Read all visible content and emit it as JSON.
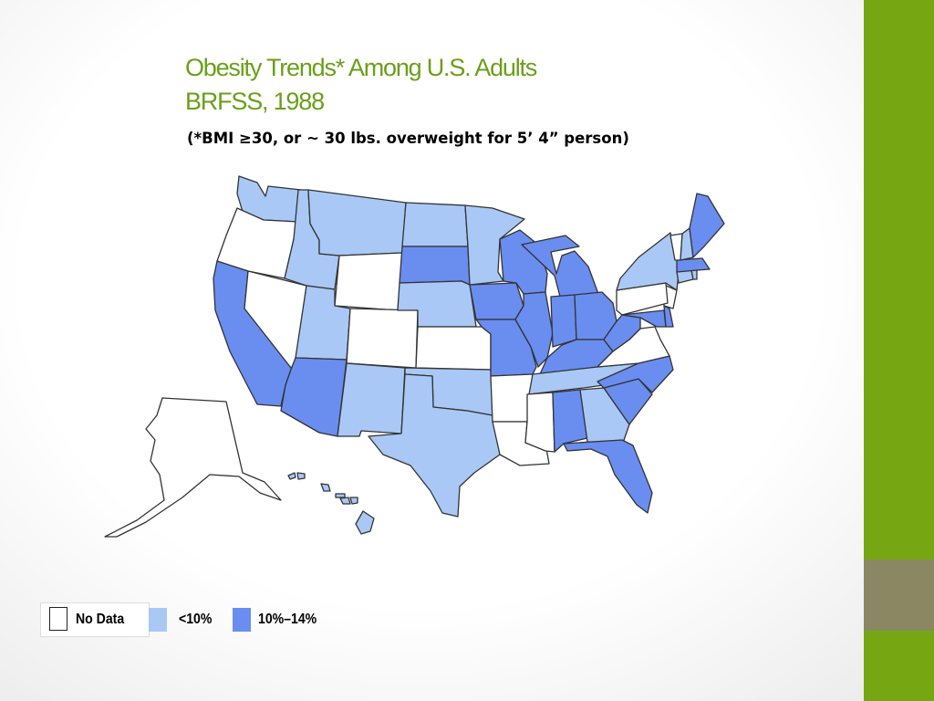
{
  "slide": {
    "title_line1": "Obesity Trends* Among U.S. Adults",
    "title_line2": "BRFSS, 1988",
    "subtitle": "(*BMI ≥30, or ~ 30 lbs. overweight for 5’ 4” person)"
  },
  "colors": {
    "no_data": "#ffffff",
    "under_10": "#a9c8f5",
    "10_14": "#6a8df0",
    "title": "#6a9f1a",
    "sidebar_green": "#76a713",
    "sidebar_gray": "#8c8763"
  },
  "legend": [
    {
      "label": "No Data",
      "color": "#ffffff"
    },
    {
      "label": "<10%",
      "color": "#a9c8f5"
    },
    {
      "label": "10%–14%",
      "color": "#6a8df0"
    }
  ],
  "states": {
    "WA": "<10%",
    "OR": "No Data",
    "CA": "10%–14%",
    "NV": "No Data",
    "ID": "<10%",
    "MT": "<10%",
    "WY": "No Data",
    "UT": "<10%",
    "AZ": "10%–14%",
    "CO": "No Data",
    "NM": "<10%",
    "ND": "<10%",
    "SD": "10%–14%",
    "NE": "<10%",
    "KS": "No Data",
    "OK": "<10%",
    "TX": "<10%",
    "MN": "<10%",
    "IA": "10%–14%",
    "MO": "10%–14%",
    "AR": "No Data",
    "LA": "No Data",
    "WI": "10%–14%",
    "IL": "10%–14%",
    "MI": "10%–14%",
    "IN": "10%–14%",
    "OH": "10%–14%",
    "KY": "10%–14%",
    "TN": "<10%",
    "MS": "No Data",
    "AL": "10%–14%",
    "GA": "<10%",
    "FL": "10%–14%",
    "SC": "10%–14%",
    "NC": "10%–14%",
    "VA": "No Data",
    "WV": "10%–14%",
    "MD": "10%–14%",
    "DE": "10%–14%",
    "NJ": "No Data",
    "PA": "No Data",
    "NY": "<10%",
    "CT": "<10%",
    "RI": "<10%",
    "MA": "10%–14%",
    "VT": "No Data",
    "NH": "<10%",
    "ME": "10%–14%",
    "AK": "No Data",
    "HI": "<10%"
  }
}
